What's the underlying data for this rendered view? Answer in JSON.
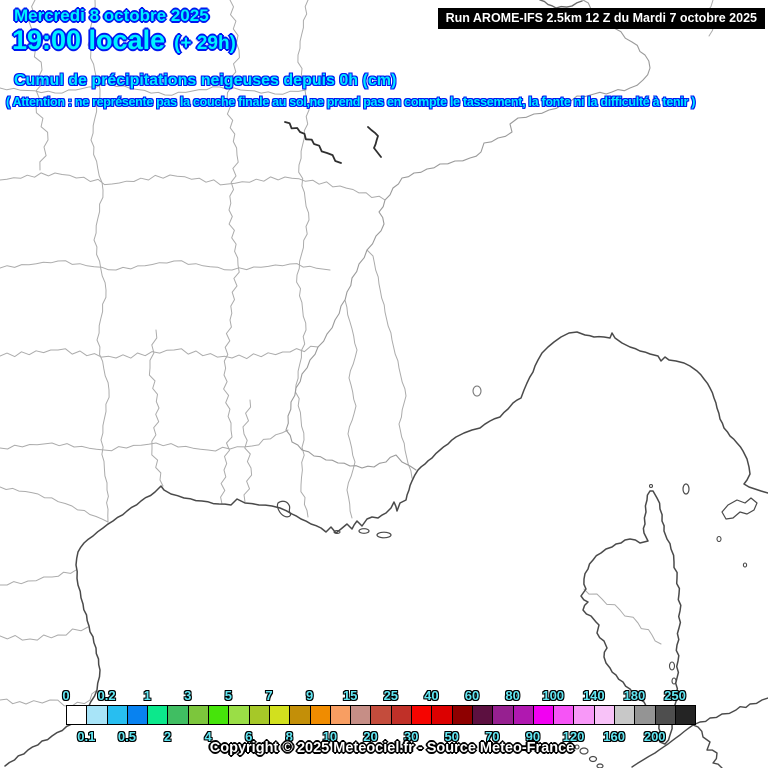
{
  "header": {
    "date": "Mercredi 8 octobre 2025",
    "local_time": "19:00 locale",
    "forecast_offset": "(+ 29h)",
    "title": "Cumul de précipitations neigeuses depuis 0h (cm)",
    "warning": "( Attention : ne représente pas la couche finale au sol,ne prend pas en compte le tassement, la fonte ni la difficulté à tenir )",
    "run_info": "Run AROME-IFS 2.5km 12 Z du Mardi 7 octobre 2025"
  },
  "legend": {
    "unit": "cm",
    "boundary_labels": [
      "0",
      "0.1",
      "0.2",
      "0.5",
      "1",
      "2",
      "3",
      "4",
      "5",
      "6",
      "7",
      "8",
      "9",
      "10",
      "15",
      "20",
      "25",
      "30",
      "40",
      "50",
      "60",
      "70",
      "80",
      "90",
      "100",
      "120",
      "140",
      "160",
      "180",
      "200",
      "250"
    ],
    "cell_colors": [
      "#ffffff",
      "#a8e4f8",
      "#28bef0",
      "#0882f0",
      "#0ce88c",
      "#40be62",
      "#7cc63c",
      "#46e40a",
      "#9ade46",
      "#a6c828",
      "#d2e01e",
      "#c38f08",
      "#f08c00",
      "#f89e62",
      "#c68e86",
      "#c44c3c",
      "#c03028",
      "#f60400",
      "#dc0000",
      "#8e0000",
      "#5c1040",
      "#962090",
      "#b018b0",
      "#f200f2",
      "#f654f6",
      "#f898f8",
      "#f8c2f8",
      "#c8c8c8",
      "#949494",
      "#4e4e4e",
      "#242424"
    ]
  },
  "footer": {
    "copyright": "Copyright © 2025 Meteociel.fr - Source Meteo-France"
  },
  "colors": {
    "header_fill": "#00f2ff",
    "header_outline": "#0018f0",
    "legend_label": "#62e6f2",
    "run_bg": "#000000",
    "run_text": "#ffffff",
    "coastline": "#4a4a4a",
    "department_border": "#ababab",
    "national_border": "#2f2f2f"
  }
}
